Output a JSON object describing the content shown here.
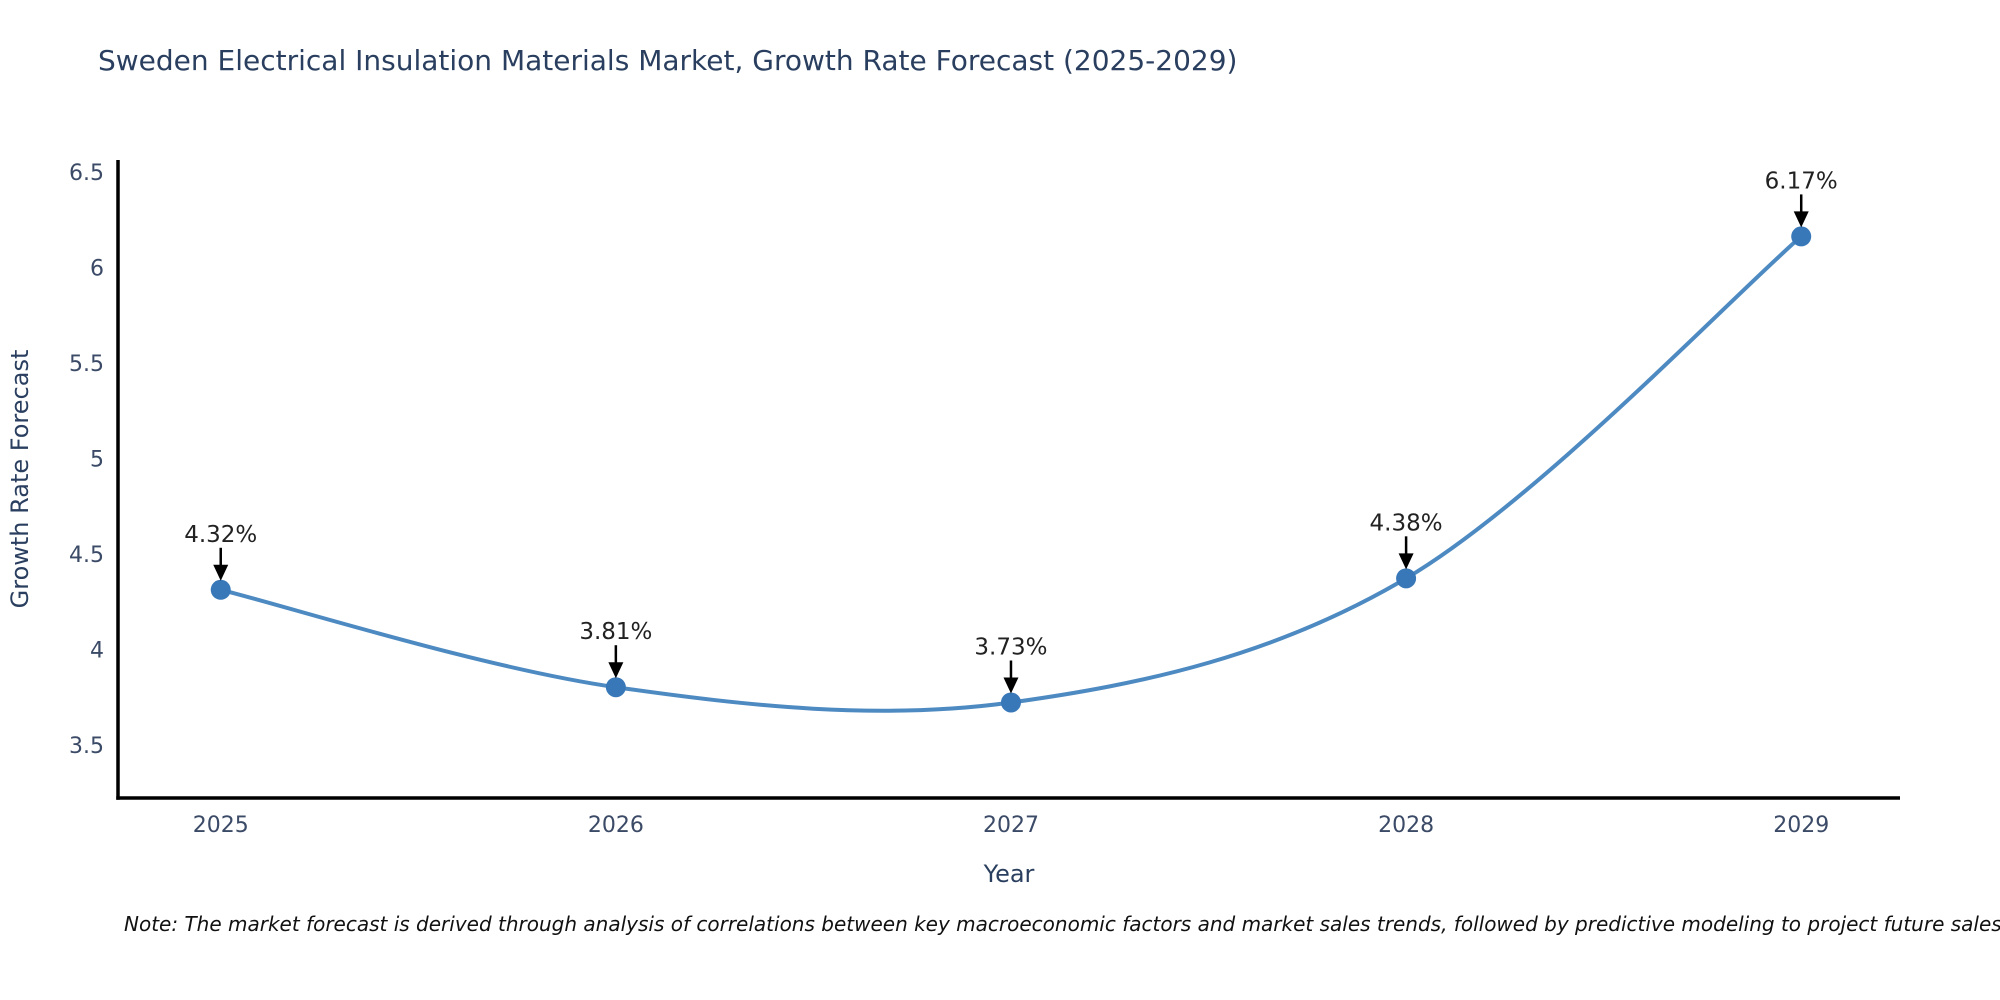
{
  "title": "Sweden Electrical Insulation Materials Market, Growth Rate Forecast (2025-2029)",
  "note": "Note: The market forecast is derived through analysis of correlations between key macroeconomic factors and market sales trends, followed by predictive modeling to project future sales",
  "colors": {
    "title": "#2a3f5f",
    "tick": "#3b4a66",
    "line": "#4e8ac2",
    "marker": "#3878b8",
    "axis": "#000000",
    "annotation_text": "#222222",
    "annotation_arrow": "#000000",
    "note": "#111111",
    "background": "#ffffff"
  },
  "chart_data": {
    "type": "line",
    "title": "Sweden Electrical Insulation Materials Market, Growth Rate Forecast (2025-2029)",
    "xlabel": "Year",
    "ylabel": "Growth Rate Forecast",
    "x": [
      2025,
      2026,
      2027,
      2028,
      2029
    ],
    "y": [
      4.32,
      3.81,
      3.73,
      4.38,
      6.17
    ],
    "annotations": [
      "4.32%",
      "3.81%",
      "3.73%",
      "4.38%",
      "6.17%"
    ],
    "x_tick_labels": [
      "2025",
      "2026",
      "2027",
      "2028",
      "2029"
    ],
    "y_ticks": [
      3.5,
      4,
      4.5,
      5,
      5.5,
      6,
      6.5
    ],
    "y_tick_labels": [
      "3.5",
      "4",
      "4.5",
      "5",
      "5.5",
      "6",
      "6.5"
    ],
    "xlim": [
      2024.74,
      2029.25
    ],
    "ylim": [
      3.23,
      6.57
    ],
    "line_shape": "spline",
    "grid": false,
    "legend": "none",
    "marker_style": "circle"
  }
}
